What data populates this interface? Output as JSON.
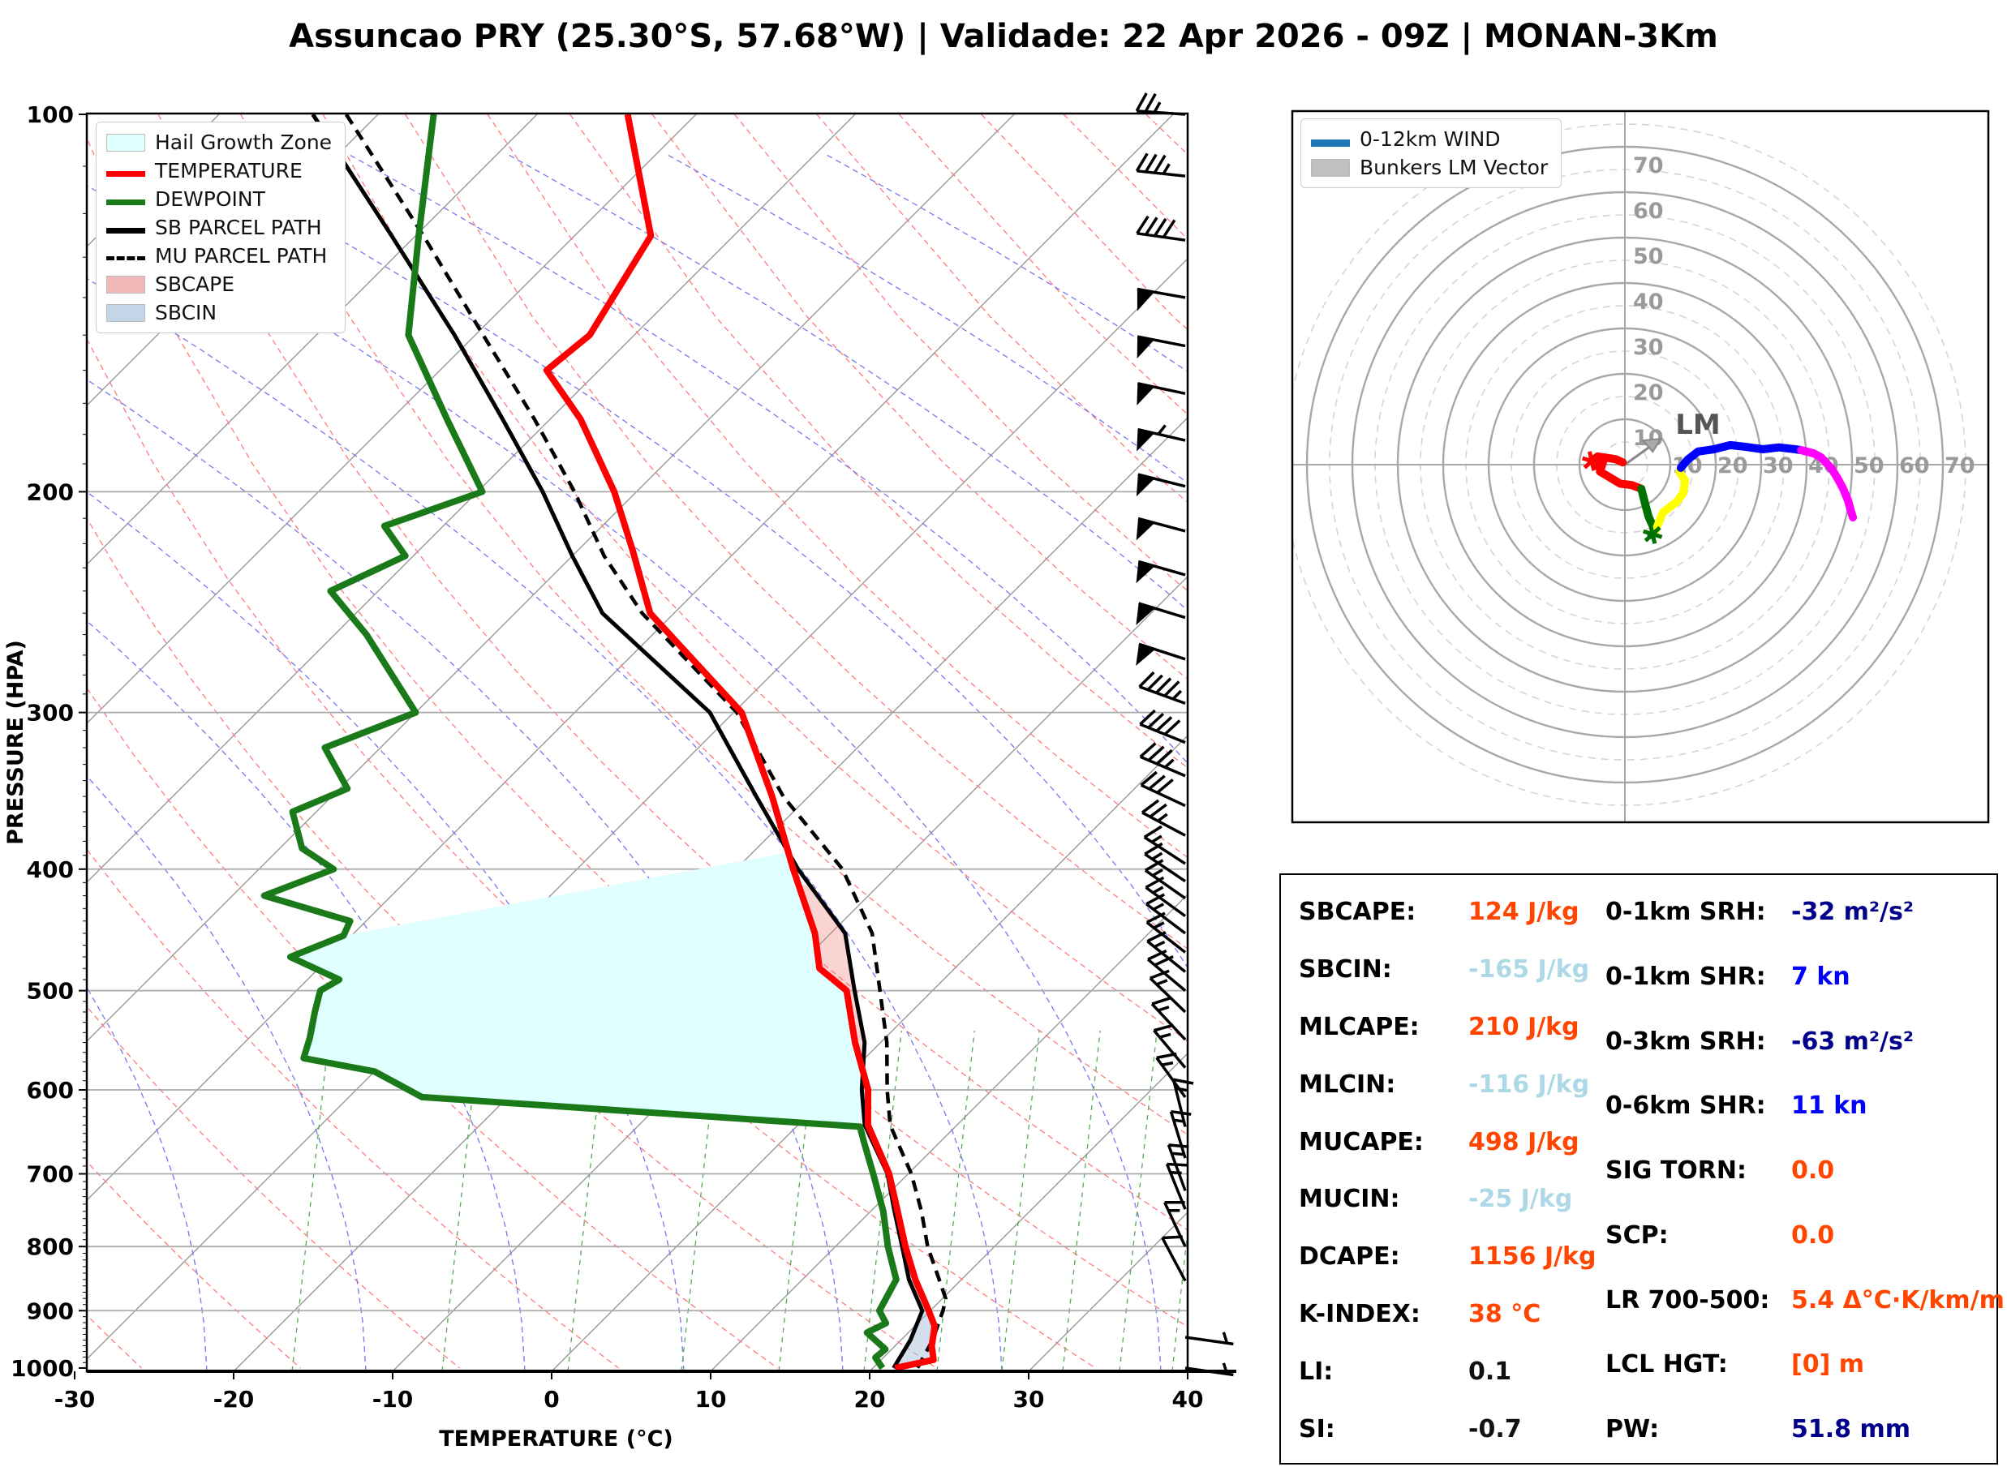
{
  "title": "Assuncao PRY (25.30°S, 57.68°W) | Validade: 22 Apr 2026 - 09Z | MONAN-3Km",
  "chart_data": [
    {
      "type": "line",
      "name": "skew-t-log-p",
      "xlabel": "TEMPERATURE (°C)",
      "ylabel": "PRESSURE (HPA)",
      "xlim": [
        -30,
        40
      ],
      "plim": [
        100,
        1000
      ],
      "temp_ticks": [
        -30,
        -20,
        -10,
        0,
        10,
        20,
        30,
        40
      ],
      "pressure_ticks": [
        100,
        200,
        300,
        400,
        500,
        600,
        700,
        800,
        900,
        1000
      ],
      "grid": "on",
      "legend_position": "upper left",
      "legend": [
        {
          "label": "Hail Growth Zone",
          "style": "patch",
          "color": "#e0ffff"
        },
        {
          "label": "TEMPERATURE",
          "style": "line",
          "color": "#ff0000"
        },
        {
          "label": "DEWPOINT",
          "style": "line",
          "color": "#1a7a1a"
        },
        {
          "label": "SB PARCEL PATH",
          "style": "line",
          "color": "#000000"
        },
        {
          "label": "MU PARCEL PATH",
          "style": "dashed",
          "color": "#000000"
        },
        {
          "label": "SBCAPE",
          "style": "patch",
          "color": "#f2b7b7"
        },
        {
          "label": "SBCIN",
          "style": "patch",
          "color": "#c3d6e8"
        }
      ],
      "series": [
        {
          "name": "temperature",
          "color": "#ff0000",
          "points_p_t": [
            [
              100,
              -74.3
            ],
            [
              125,
              -65.2
            ],
            [
              150,
              -62.8
            ],
            [
              160,
              -63.3
            ],
            [
              175,
              -58.1
            ],
            [
              200,
              -51.4
            ],
            [
              223,
              -46.5
            ],
            [
              250,
              -41.5
            ],
            [
              300,
              -29.5
            ],
            [
              350,
              -22.3
            ],
            [
              400,
              -16.4
            ],
            [
              450,
              -11.0
            ],
            [
              480,
              -8.5
            ],
            [
              500,
              -5.4
            ],
            [
              550,
              -1.6
            ],
            [
              600,
              2.2
            ],
            [
              640,
              4.4
            ],
            [
              700,
              8.8
            ],
            [
              750,
              11.7
            ],
            [
              800,
              14.4
            ],
            [
              850,
              17.1
            ],
            [
              900,
              19.9
            ],
            [
              925,
              21.2
            ],
            [
              937,
              21.6
            ],
            [
              960,
              22.3
            ],
            [
              985,
              23.3
            ],
            [
              1000,
              21.4
            ]
          ]
        },
        {
          "name": "dewpoint",
          "color": "#1a7a1a",
          "points_p_t": [
            [
              100,
              -86.5
            ],
            [
              125,
              -79.8
            ],
            [
              150,
              -74.2
            ],
            [
              175,
              -66.5
            ],
            [
              200,
              -59.7
            ],
            [
              213,
              -63.7
            ],
            [
              225,
              -60.5
            ],
            [
              240,
              -63.0
            ],
            [
              260,
              -58.0
            ],
            [
              300,
              -50.0
            ],
            [
              320,
              -53.5
            ],
            [
              345,
              -49.5
            ],
            [
              360,
              -51.5
            ],
            [
              385,
              -48.6
            ],
            [
              400,
              -45.3
            ],
            [
              420,
              -48.0
            ],
            [
              440,
              -41.0
            ],
            [
              452,
              -40.5
            ],
            [
              470,
              -42.5
            ],
            [
              490,
              -38.0
            ],
            [
              500,
              -38.5
            ],
            [
              520,
              -37.5
            ],
            [
              545,
              -36.2
            ],
            [
              566,
              -35.3
            ],
            [
              580,
              -30.0
            ],
            [
              608,
              -25.4
            ],
            [
              642,
              4.0
            ],
            [
              660,
              5.2
            ],
            [
              700,
              7.8
            ],
            [
              750,
              10.8
            ],
            [
              800,
              13.3
            ],
            [
              850,
              15.9
            ],
            [
              900,
              16.8
            ],
            [
              921,
              18.0
            ],
            [
              937,
              17.4
            ],
            [
              966,
              19.6
            ],
            [
              981,
              19.5
            ],
            [
              1000,
              20.6
            ]
          ]
        },
        {
          "name": "sb_parcel",
          "color": "#000000",
          "points_p_t": [
            [
              100,
              -94.1
            ],
            [
              125,
              -81.5
            ],
            [
              150,
              -71.3
            ],
            [
              175,
              -63.0
            ],
            [
              200,
              -55.9
            ],
            [
              225,
              -50.0
            ],
            [
              250,
              -44.5
            ],
            [
              300,
              -31.5
            ],
            [
              350,
              -23.3
            ],
            [
              400,
              -16.1
            ],
            [
              450,
              -9.1
            ],
            [
              500,
              -4.9
            ],
            [
              550,
              -1.0
            ],
            [
              600,
              1.8
            ],
            [
              640,
              4.2
            ],
            [
              700,
              8.7
            ],
            [
              750,
              11.5
            ],
            [
              800,
              14.2
            ],
            [
              850,
              16.7
            ],
            [
              900,
              19.5
            ],
            [
              950,
              20.6
            ],
            [
              1000,
              21.3
            ]
          ]
        },
        {
          "name": "mu_parcel",
          "color": "#000000",
          "dashed": true,
          "points_p_t": [
            [
              100,
              -92.0
            ],
            [
              125,
              -79.5
            ],
            [
              150,
              -69.5
            ],
            [
              175,
              -61.0
            ],
            [
              200,
              -53.9
            ],
            [
              225,
              -48.0
            ],
            [
              250,
              -42.0
            ],
            [
              300,
              -29.8
            ],
            [
              350,
              -21.6
            ],
            [
              400,
              -13.3
            ],
            [
              450,
              -7.4
            ],
            [
              500,
              -3.3
            ],
            [
              550,
              0.4
            ],
            [
              600,
              3.4
            ],
            [
              640,
              5.8
            ],
            [
              700,
              10.2
            ],
            [
              750,
              13.2
            ],
            [
              800,
              15.8
            ],
            [
              850,
              18.6
            ],
            [
              880,
              20.2
            ],
            [
              900,
              20.8
            ],
            [
              950,
              22.0
            ],
            [
              1000,
              22.8
            ]
          ]
        }
      ],
      "shading": {
        "hail_growth_zone": {
          "color": "#e0ffff",
          "polygon_p_t": [
            [
              452,
              -40.5
            ],
            [
              470,
              -42.5
            ],
            [
              490,
              -38.0
            ],
            [
              500,
              -38.5
            ],
            [
              520,
              -37.5
            ],
            [
              545,
              -36.2
            ],
            [
              566,
              -35.3
            ],
            [
              580,
              -30.0
            ],
            [
              608,
              -25.4
            ],
            [
              642,
              4.0
            ],
            [
              640,
              4.4
            ],
            [
              600,
              2.2
            ],
            [
              550,
              -1.6
            ],
            [
              500,
              -5.4
            ],
            [
              480,
              -8.5
            ],
            [
              450,
              -11.0
            ],
            [
              400,
              -16.4
            ],
            [
              388,
              -17.8
            ]
          ]
        },
        "sbcape": {
          "color": "rgba(240,128,128,0.35)",
          "between": [
            "sb_parcel",
            "temperature"
          ],
          "p_range": [
            412,
            585
          ]
        },
        "sbcin": {
          "color": "rgba(176,196,222,0.55)",
          "between": [
            "sb_parcel",
            "temperature"
          ],
          "p_range": [
            585,
            1000
          ]
        }
      },
      "wind_barbs_p_kn_ang": [
        [
          1000,
          5,
          -8
        ],
        [
          945,
          5,
          -8
        ],
        [
          852,
          10,
          118
        ],
        [
          800,
          15,
          115
        ],
        [
          747,
          15,
          112
        ],
        [
          722,
          15,
          110
        ],
        [
          680,
          15,
          107
        ],
        [
          642,
          15,
          104
        ],
        [
          608,
          15,
          126
        ],
        [
          576,
          15,
          130
        ],
        [
          547,
          15,
          133
        ],
        [
          520,
          15,
          136
        ],
        [
          500,
          20,
          140
        ],
        [
          483,
          15,
          141
        ],
        [
          466,
          15,
          142
        ],
        [
          450,
          15,
          143
        ],
        [
          436,
          15,
          144
        ],
        [
          422,
          15,
          145
        ],
        [
          409,
          15,
          146
        ],
        [
          396,
          15,
          147
        ],
        [
          376,
          25,
          152
        ],
        [
          356,
          30,
          155
        ],
        [
          337,
          35,
          157
        ],
        [
          317,
          40,
          158
        ],
        [
          295,
          45,
          160
        ],
        [
          272,
          50,
          162
        ],
        [
          252,
          50,
          163
        ],
        [
          233,
          50,
          164
        ],
        [
          215,
          50,
          165
        ],
        [
          198,
          50,
          166
        ],
        [
          182,
          55,
          167
        ],
        [
          167,
          50,
          168
        ],
        [
          153,
          50,
          169
        ],
        [
          140,
          50,
          170
        ],
        [
          126,
          40,
          172
        ],
        [
          112,
          35,
          174
        ],
        [
          100,
          25,
          176
        ]
      ]
    },
    {
      "type": "line",
      "name": "hodograph",
      "rings_solid": [
        10,
        20,
        30,
        40,
        50,
        60,
        70
      ],
      "rings_dashed": [
        5,
        15,
        25,
        35,
        45,
        55,
        65,
        75
      ],
      "ring_labels": [
        10,
        20,
        30,
        40,
        50,
        60,
        70
      ],
      "axis_units": "kn",
      "legend": [
        {
          "label": "0-12km WIND",
          "style": "line",
          "color": "#1f77b4"
        },
        {
          "label": "Bunkers LM Vector",
          "style": "patch",
          "color": "#c0c0c0"
        }
      ],
      "lm_vector": {
        "u": 7.9,
        "v": 5.7,
        "label": "LM"
      },
      "segments": [
        {
          "layer": "0-1km",
          "color": "#ff0000",
          "points_u_v": [
            [
              -0.5,
              0.5
            ],
            [
              -2,
              1.2
            ],
            [
              -4,
              1.5
            ],
            [
              -6,
              1.8
            ],
            [
              -7.3,
              0.8
            ],
            [
              -6.2,
              -0.2
            ],
            [
              -4.8,
              0.6
            ],
            [
              -5.5,
              -1.5
            ],
            [
              -3,
              -3
            ],
            [
              -1,
              -4.2
            ],
            [
              1.5,
              -4.5
            ],
            [
              3.6,
              -5.3
            ]
          ]
        },
        {
          "layer": "1-3km",
          "color": "#007000",
          "points_u_v": [
            [
              3.6,
              -5.3
            ],
            [
              4.5,
              -8.8
            ],
            [
              5.2,
              -11.4
            ],
            [
              6.3,
              -13.9
            ],
            [
              6.6,
              -14.8
            ],
            [
              5.8,
              -15.5
            ]
          ]
        },
        {
          "layer": "3-6km",
          "color": "#ffff00",
          "points_u_v": [
            [
              6.6,
              -14.8
            ],
            [
              8.4,
              -10.5
            ],
            [
              11.4,
              -8.2
            ],
            [
              12.9,
              -6.1
            ],
            [
              13.2,
              -3.4
            ],
            [
              12.0,
              -1.6
            ],
            [
              12.3,
              -0.7
            ]
          ]
        },
        {
          "layer": "6-9km",
          "color": "#0000ff",
          "points_u_v": [
            [
              12.3,
              -0.7
            ],
            [
              13.8,
              1.1
            ],
            [
              16.1,
              2.9
            ],
            [
              19.6,
              3.4
            ],
            [
              23.2,
              4.3
            ],
            [
              26.8,
              3.9
            ],
            [
              30.4,
              3.4
            ],
            [
              33.9,
              3.8
            ],
            [
              37.5,
              3.4
            ],
            [
              38.8,
              3.2
            ]
          ]
        },
        {
          "layer": "9-12km",
          "color": "#ff00ff",
          "points_u_v": [
            [
              38.8,
              3.2
            ],
            [
              41.5,
              2.5
            ],
            [
              43.2,
              1.6
            ],
            [
              45.5,
              -0.9
            ],
            [
              46.8,
              -3.0
            ],
            [
              48.0,
              -5.2
            ],
            [
              49.1,
              -7.9
            ],
            [
              49.8,
              -10.4
            ],
            [
              50.2,
              -11.6
            ]
          ]
        }
      ]
    }
  ],
  "table": {
    "left": [
      {
        "label": "SBCAPE:",
        "value": "124 J/kg",
        "color": "#ff4500"
      },
      {
        "label": "SBCIN:",
        "value": "-165 J/kg",
        "color": "#add8e6"
      },
      {
        "label": "MLCAPE:",
        "value": "210 J/kg",
        "color": "#ff4500"
      },
      {
        "label": "MLCIN:",
        "value": "-116 J/kg",
        "color": "#add8e6"
      },
      {
        "label": "MUCAPE:",
        "value": "498 J/kg",
        "color": "#ff4500"
      },
      {
        "label": "MUCIN:",
        "value": "-25 J/kg",
        "color": "#add8e6"
      },
      {
        "label": "DCAPE:",
        "value": "1156 J/kg",
        "color": "#ff4500"
      },
      {
        "label": "K-INDEX:",
        "value": "38 °C",
        "color": "#ff4500"
      },
      {
        "label": "LI:",
        "value": "0.1",
        "color": "#111111"
      },
      {
        "label": "SI:",
        "value": "-0.7",
        "color": "#111111"
      }
    ],
    "right": [
      {
        "label": "0-1km SRH:",
        "value": "-32 m²/s²",
        "color": "#00008b"
      },
      {
        "label": "0-1km SHR:",
        "value": "7 kn",
        "color": "#0000ff"
      },
      {
        "label": "0-3km SRH:",
        "value": "-63 m²/s²",
        "color": "#00008b"
      },
      {
        "label": "0-6km SHR:",
        "value": "11 kn",
        "color": "#0000ff"
      },
      {
        "label": "SIG TORN:",
        "value": "0.0",
        "color": "#ff4500"
      },
      {
        "label": "SCP:",
        "value": "0.0",
        "color": "#ff4500"
      },
      {
        "label": "LR 700-500:",
        "value": "5.4 Δ°C·K/km/m",
        "color": "#ff4500"
      },
      {
        "label": "LCL HGT:",
        "value": "[0] m",
        "color": "#ff4500"
      },
      {
        "label": "PW:",
        "value": "51.8 mm",
        "color": "#00008b"
      }
    ]
  }
}
